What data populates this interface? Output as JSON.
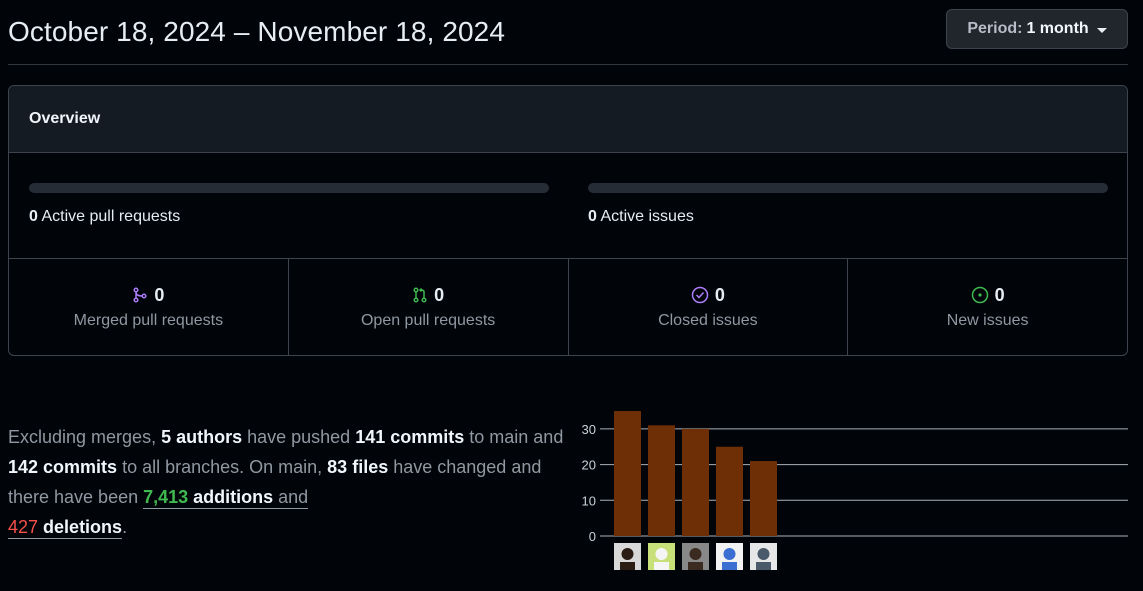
{
  "header": {
    "date_range": "October 18, 2024 – November 18, 2024",
    "period_label": "Period:",
    "period_value": "1 month"
  },
  "overview": {
    "title": "Overview",
    "active_pull_requests": {
      "count": "0",
      "label": "Active pull requests"
    },
    "active_issues": {
      "count": "0",
      "label": "Active issues"
    },
    "stats": [
      {
        "count": "0",
        "label": "Merged pull requests",
        "icon": "git-merge-icon",
        "color": "#ab7df8"
      },
      {
        "count": "0",
        "label": "Open pull requests",
        "icon": "git-pull-request-icon",
        "color": "#3fb950"
      },
      {
        "count": "0",
        "label": "Closed issues",
        "icon": "issue-closed-icon",
        "color": "#ab7df8"
      },
      {
        "count": "0",
        "label": "New issues",
        "icon": "issue-opened-icon",
        "color": "#3fb950"
      }
    ]
  },
  "summary": {
    "prefix": "Excluding merges, ",
    "authors": "5 authors",
    "t1": " have pushed ",
    "commits_main": "141 commits",
    "t2": " to main and ",
    "commits_all": "142 commits",
    "t3": " to all branches. On main, ",
    "files": "83 files",
    "t4": " have changed and there have been ",
    "additions_count": "7,413",
    "additions_label": " additions",
    "t5": " and ",
    "deletions_count": "427",
    "deletions_label": " deletions",
    "t6": "."
  },
  "chart_data": {
    "type": "bar",
    "categories": [
      "author-1",
      "author-2",
      "author-3",
      "author-4",
      "author-5"
    ],
    "values": [
      35,
      31,
      30,
      25,
      21
    ],
    "ylim": [
      0,
      35
    ],
    "yticks": [
      "0",
      "10",
      "20",
      "30"
    ],
    "bar_color": "#6e2f07",
    "grid": true
  }
}
